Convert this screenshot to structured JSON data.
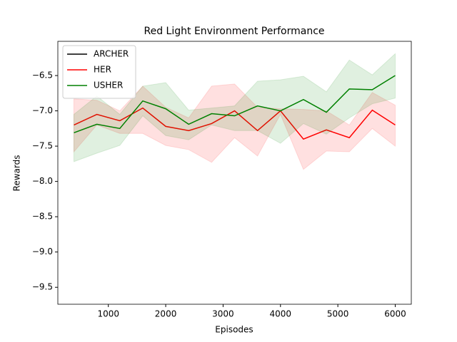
{
  "chart_data": {
    "type": "line",
    "title": "Red Light Environment Performance",
    "xlabel": "Episodes",
    "ylabel": "Rewards",
    "x": [
      400,
      800,
      1200,
      1600,
      2000,
      2400,
      2800,
      3200,
      3600,
      4000,
      4400,
      4800,
      5200,
      5600,
      6000
    ],
    "series": [
      {
        "name": "ARCHER",
        "color": "#000000",
        "values": [
          null,
          null,
          null,
          null,
          null,
          null,
          null,
          null,
          null,
          null,
          null,
          null,
          null,
          null,
          null
        ]
      },
      {
        "name": "HER",
        "color": "#ff0000",
        "values": [
          -7.2,
          -7.05,
          -7.14,
          -6.96,
          -7.22,
          -7.28,
          -7.18,
          -7.0,
          -7.28,
          -7.0,
          -7.4,
          -7.27,
          -7.38,
          -6.99,
          -7.2
        ],
        "upper": [
          -6.83,
          -6.85,
          -7.0,
          -6.65,
          -6.95,
          -7.1,
          -6.65,
          -6.62,
          -6.95,
          -6.97,
          -6.98,
          -7.0,
          -7.2,
          -6.74,
          -6.92
        ],
        "lower": [
          -7.58,
          -7.2,
          -7.32,
          -7.32,
          -7.49,
          -7.55,
          -7.73,
          -7.38,
          -7.64,
          -7.05,
          -7.83,
          -7.57,
          -7.58,
          -7.25,
          -7.5
        ]
      },
      {
        "name": "USHER",
        "color": "#008000",
        "values": [
          -7.31,
          -7.19,
          -7.25,
          -6.86,
          -6.97,
          -7.19,
          -7.04,
          -7.07,
          -6.93,
          -7.0,
          -6.84,
          -7.02,
          -6.69,
          -6.7,
          -6.5
        ],
        "upper": [
          -7.05,
          -6.79,
          -7.05,
          -6.65,
          -6.6,
          -6.99,
          -6.96,
          -6.93,
          -6.58,
          -6.56,
          -6.51,
          -6.73,
          -6.28,
          -6.49,
          -6.19
        ],
        "lower": [
          -7.72,
          -7.6,
          -7.49,
          -7.07,
          -7.35,
          -7.41,
          -7.2,
          -7.28,
          -7.28,
          -7.46,
          -7.18,
          -7.33,
          -7.1,
          -6.9,
          -6.82
        ]
      }
    ],
    "xlim": [
      120,
      6280
    ],
    "ylim": [
      -9.74,
      -6.015
    ],
    "xticks": [
      1000,
      2000,
      3000,
      4000,
      5000,
      6000
    ],
    "yticks": [
      {
        "value": -9.5,
        "label": "−9.5"
      },
      {
        "value": -9.0,
        "label": "−9.0"
      },
      {
        "value": -8.5,
        "label": "−8.5"
      },
      {
        "value": -8.0,
        "label": "−8.0"
      },
      {
        "value": -7.5,
        "label": "−7.5"
      },
      {
        "value": -7.0,
        "label": "−7.0"
      },
      {
        "value": -6.5,
        "label": "−6.5"
      }
    ],
    "legend": "upper left",
    "grid": false
  }
}
